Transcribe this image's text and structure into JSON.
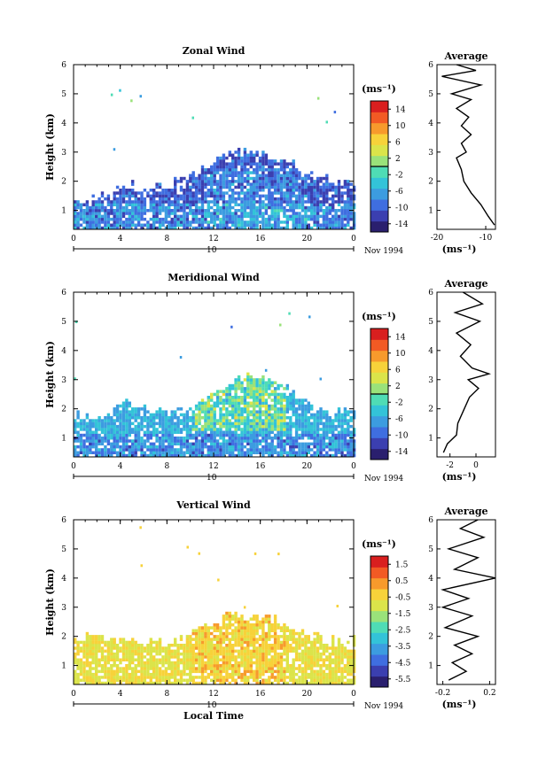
{
  "chart_data": [
    {
      "type": "heatmap",
      "id": "zonal",
      "title": "Zonal Wind",
      "ylabel": "Height (km)",
      "xticks": [
        "0",
        "4",
        "8",
        "12",
        "16",
        "20",
        "0"
      ],
      "xlim": [
        0,
        24
      ],
      "ylim": [
        0.35,
        6
      ],
      "yticks": [
        "1",
        "2",
        "3",
        "4",
        "5",
        "6"
      ],
      "date_day": "10",
      "date_tag": "Nov 1994",
      "colorbar": {
        "unit": "(ms⁻¹)",
        "ticks": [
          "14",
          "10",
          "6",
          "2",
          "-2",
          "-6",
          "-10",
          "-14"
        ],
        "range": [
          -16,
          16
        ],
        "zero_line_at": 0
      },
      "coverage_profile_km": [
        {
          "t": 0,
          "top": 1.2
        },
        {
          "t": 2,
          "top": 1.4
        },
        {
          "t": 4,
          "top": 1.9
        },
        {
          "t": 6,
          "top": 1.7
        },
        {
          "t": 8,
          "top": 1.8
        },
        {
          "t": 10,
          "top": 2.2
        },
        {
          "t": 12,
          "top": 2.7
        },
        {
          "t": 14,
          "top": 3.0
        },
        {
          "t": 16,
          "top": 2.9
        },
        {
          "t": 18,
          "top": 2.6
        },
        {
          "t": 20,
          "top": 2.3
        },
        {
          "t": 22,
          "top": 2.0
        },
        {
          "t": 24,
          "top": 1.8
        }
      ],
      "average_panel": {
        "title": "Average",
        "xlabel": "(ms⁻¹)",
        "xticks": [
          "-20",
          "-10"
        ],
        "xlim": [
          -20,
          -8
        ],
        "profile": [
          {
            "h": 0.5,
            "v": -8.2
          },
          {
            "h": 0.8,
            "v": -9.5
          },
          {
            "h": 1.2,
            "v": -11
          },
          {
            "h": 1.6,
            "v": -13
          },
          {
            "h": 2.0,
            "v": -14.5
          },
          {
            "h": 2.4,
            "v": -15
          },
          {
            "h": 2.8,
            "v": -16
          },
          {
            "h": 3.0,
            "v": -14
          },
          {
            "h": 3.3,
            "v": -15
          },
          {
            "h": 3.6,
            "v": -13
          },
          {
            "h": 3.9,
            "v": -15
          },
          {
            "h": 4.2,
            "v": -13.5
          },
          {
            "h": 4.5,
            "v": -16
          },
          {
            "h": 4.8,
            "v": -13
          },
          {
            "h": 5.0,
            "v": -17
          },
          {
            "h": 5.3,
            "v": -11
          },
          {
            "h": 5.6,
            "v": -19
          },
          {
            "h": 5.8,
            "v": -12
          },
          {
            "h": 6.0,
            "v": -16
          }
        ]
      }
    },
    {
      "type": "heatmap",
      "id": "meridional",
      "title": "Meridional Wind",
      "ylabel": "Height (km)",
      "xticks": [
        "0",
        "4",
        "8",
        "12",
        "16",
        "20",
        "0"
      ],
      "xlim": [
        0,
        24
      ],
      "ylim": [
        0.35,
        6
      ],
      "yticks": [
        "1",
        "2",
        "3",
        "4",
        "5",
        "6"
      ],
      "date_day": "10",
      "date_tag": "Nov 1994",
      "colorbar": {
        "unit": "(ms⁻¹)",
        "ticks": [
          "14",
          "10",
          "6",
          "2",
          "-2",
          "-6",
          "-10",
          "-14"
        ],
        "range": [
          -16,
          16
        ],
        "zero_line_at": 0
      },
      "coverage_profile_km": [
        {
          "t": 0,
          "top": 1.8
        },
        {
          "t": 2,
          "top": 1.6
        },
        {
          "t": 4,
          "top": 2.2
        },
        {
          "t": 6,
          "top": 2.0
        },
        {
          "t": 8,
          "top": 1.8
        },
        {
          "t": 10,
          "top": 2.0
        },
        {
          "t": 12,
          "top": 2.6
        },
        {
          "t": 14,
          "top": 3.1
        },
        {
          "t": 16,
          "top": 3.0
        },
        {
          "t": 18,
          "top": 2.8
        },
        {
          "t": 20,
          "top": 2.1
        },
        {
          "t": 22,
          "top": 1.9
        },
        {
          "t": 24,
          "top": 1.8
        }
      ],
      "average_panel": {
        "title": "Average",
        "xlabel": "(ms⁻¹)",
        "xticks": [
          "-2",
          "0"
        ],
        "xlim": [
          -3,
          1.5
        ],
        "profile": [
          {
            "h": 0.5,
            "v": -2.5
          },
          {
            "h": 0.8,
            "v": -2.2
          },
          {
            "h": 1.1,
            "v": -1.5
          },
          {
            "h": 1.5,
            "v": -1.4
          },
          {
            "h": 2.0,
            "v": -0.9
          },
          {
            "h": 2.4,
            "v": -0.5
          },
          {
            "h": 2.7,
            "v": 0.2
          },
          {
            "h": 3.0,
            "v": -0.6
          },
          {
            "h": 3.2,
            "v": 1.0
          },
          {
            "h": 3.4,
            "v": -0.3
          },
          {
            "h": 3.8,
            "v": -1.2
          },
          {
            "h": 4.2,
            "v": -0.4
          },
          {
            "h": 4.6,
            "v": -1.5
          },
          {
            "h": 5.0,
            "v": 0.3
          },
          {
            "h": 5.3,
            "v": -1.6
          },
          {
            "h": 5.6,
            "v": 0.5
          },
          {
            "h": 6.0,
            "v": -1.0
          }
        ]
      }
    },
    {
      "type": "heatmap",
      "id": "vertical",
      "title": "Vertical Wind",
      "ylabel": "Height (km)",
      "xlabel": "Local Time",
      "xticks": [
        "0",
        "4",
        "8",
        "12",
        "16",
        "20",
        "0"
      ],
      "xlim": [
        0,
        24
      ],
      "ylim": [
        0.35,
        6
      ],
      "yticks": [
        "1",
        "2",
        "3",
        "4",
        "5",
        "6"
      ],
      "date_day": "10",
      "date_tag": "Nov 1994",
      "colorbar": {
        "unit": "(ms⁻¹)",
        "ticks": [
          "1.5",
          "0.5",
          "-0.5",
          "-1.5",
          "-2.5",
          "-3.5",
          "-4.5",
          "-5.5"
        ],
        "range": [
          -6,
          2
        ]
      },
      "coverage_profile_km": [
        {
          "t": 0,
          "top": 1.9
        },
        {
          "t": 2,
          "top": 2.0
        },
        {
          "t": 4,
          "top": 1.8
        },
        {
          "t": 6,
          "top": 1.7
        },
        {
          "t": 8,
          "top": 1.7
        },
        {
          "t": 10,
          "top": 2.1
        },
        {
          "t": 12,
          "top": 2.5
        },
        {
          "t": 14,
          "top": 2.7
        },
        {
          "t": 16,
          "top": 2.6
        },
        {
          "t": 18,
          "top": 2.4
        },
        {
          "t": 20,
          "top": 2.0
        },
        {
          "t": 22,
          "top": 1.8
        },
        {
          "t": 24,
          "top": 1.8
        }
      ],
      "average_panel": {
        "title": "Average",
        "xlabel": "(ms⁻¹)",
        "xticks": [
          "-0.2",
          "0.2"
        ],
        "xlim": [
          -0.25,
          0.25
        ],
        "profile": [
          {
            "h": 0.5,
            "v": -0.15
          },
          {
            "h": 0.8,
            "v": 0.0
          },
          {
            "h": 1.1,
            "v": -0.12
          },
          {
            "h": 1.4,
            "v": 0.05
          },
          {
            "h": 1.7,
            "v": -0.1
          },
          {
            "h": 2.0,
            "v": 0.1
          },
          {
            "h": 2.3,
            "v": -0.18
          },
          {
            "h": 2.7,
            "v": 0.05
          },
          {
            "h": 3.0,
            "v": -0.2
          },
          {
            "h": 3.3,
            "v": 0.02
          },
          {
            "h": 3.6,
            "v": -0.2
          },
          {
            "h": 4.0,
            "v": 0.25
          },
          {
            "h": 4.3,
            "v": -0.1
          },
          {
            "h": 4.7,
            "v": 0.1
          },
          {
            "h": 5.0,
            "v": -0.15
          },
          {
            "h": 5.4,
            "v": 0.15
          },
          {
            "h": 5.7,
            "v": -0.05
          },
          {
            "h": 6.0,
            "v": 0.1
          }
        ]
      }
    }
  ],
  "colors": {
    "scale": [
      "#2a1f6e",
      "#3b3fb0",
      "#3f6ee0",
      "#3c9ce0",
      "#33c3d8",
      "#4fdcb5",
      "#9ae27a",
      "#dbe44a",
      "#f7d23a",
      "#f79a2c",
      "#f25a24",
      "#d91f1f"
    ],
    "axis": "#000000",
    "background": "#ffffff"
  }
}
